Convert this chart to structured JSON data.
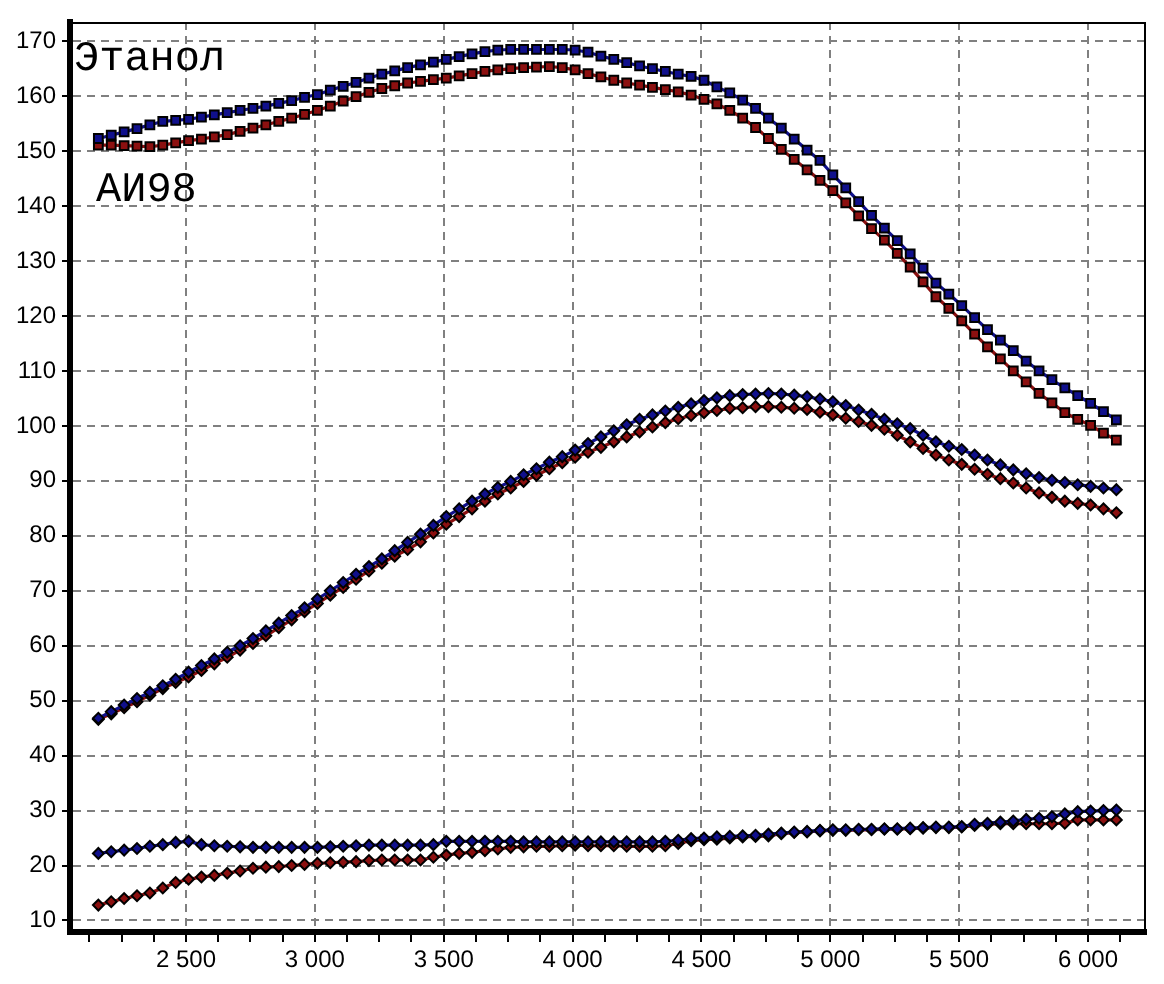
{
  "chart_data": {
    "type": "line",
    "line_style": "solid",
    "grid": true,
    "xlim": [
      2050,
      6225
    ],
    "ylim": [
      7.9,
      173.5
    ],
    "xticks": [
      {
        "value": 2125,
        "label": null
      },
      {
        "value": 2250,
        "label": null
      },
      {
        "value": 2375,
        "label": null
      },
      {
        "value": 2500,
        "label": "2 500"
      },
      {
        "value": 2625,
        "label": null
      },
      {
        "value": 2750,
        "label": null
      },
      {
        "value": 2875,
        "label": null
      },
      {
        "value": 3000,
        "label": "3 000"
      },
      {
        "value": 3125,
        "label": null
      },
      {
        "value": 3250,
        "label": null
      },
      {
        "value": 3375,
        "label": null
      },
      {
        "value": 3500,
        "label": "3 500"
      },
      {
        "value": 3625,
        "label": null
      },
      {
        "value": 3750,
        "label": null
      },
      {
        "value": 3875,
        "label": null
      },
      {
        "value": 4000,
        "label": "4 000"
      },
      {
        "value": 4125,
        "label": null
      },
      {
        "value": 4250,
        "label": null
      },
      {
        "value": 4375,
        "label": null
      },
      {
        "value": 4500,
        "label": "4 500"
      },
      {
        "value": 4625,
        "label": null
      },
      {
        "value": 4750,
        "label": null
      },
      {
        "value": 4875,
        "label": null
      },
      {
        "value": 5000,
        "label": "5 000"
      },
      {
        "value": 5125,
        "label": null
      },
      {
        "value": 5250,
        "label": null
      },
      {
        "value": 5375,
        "label": null
      },
      {
        "value": 5500,
        "label": "5 500"
      },
      {
        "value": 5625,
        "label": null
      },
      {
        "value": 5750,
        "label": null
      },
      {
        "value": 5875,
        "label": null
      },
      {
        "value": 6000,
        "label": "6 000"
      },
      {
        "value": 6125,
        "label": null
      }
    ],
    "yticks": [
      10,
      20,
      30,
      40,
      50,
      60,
      70,
      80,
      90,
      100,
      110,
      120,
      130,
      140,
      150,
      160,
      170
    ],
    "x": [
      2160,
      2210,
      2260,
      2310,
      2360,
      2410,
      2460,
      2510,
      2560,
      2610,
      2660,
      2710,
      2760,
      2810,
      2860,
      2910,
      2960,
      3010,
      3060,
      3110,
      3160,
      3210,
      3260,
      3310,
      3360,
      3410,
      3460,
      3510,
      3560,
      3610,
      3660,
      3710,
      3760,
      3810,
      3860,
      3910,
      3960,
      4010,
      4060,
      4110,
      4160,
      4210,
      4260,
      4310,
      4360,
      4410,
      4460,
      4510,
      4560,
      4610,
      4660,
      4710,
      4760,
      4810,
      4860,
      4910,
      4960,
      5010,
      5060,
      5110,
      5160,
      5210,
      5260,
      5310,
      5360,
      5410,
      5460,
      5510,
      5560,
      5610,
      5660,
      5710,
      5760,
      5810,
      5860,
      5910,
      5960,
      6010,
      6060,
      6110
    ],
    "series": [
      {
        "name": "Этанол",
        "color": "#10108c",
        "marker": "square",
        "values": [
          152.3,
          152.9,
          153.5,
          154.1,
          154.8,
          155.4,
          155.6,
          155.8,
          156.2,
          156.6,
          157.0,
          157.4,
          157.8,
          158.2,
          158.7,
          159.2,
          159.8,
          160.3,
          161.1,
          161.8,
          162.5,
          163.3,
          164.0,
          164.6,
          165.2,
          165.7,
          166.2,
          166.7,
          167.2,
          167.7,
          168.1,
          168.4,
          168.5,
          168.5,
          168.5,
          168.5,
          168.5,
          168.4,
          168.0,
          167.3,
          166.7,
          166.1,
          165.5,
          165.0,
          164.5,
          164.0,
          163.6,
          162.9,
          161.7,
          160.6,
          159.3,
          157.8,
          156.0,
          154.2,
          152.2,
          150.2,
          148.3,
          145.7,
          143.3,
          140.8,
          138.3,
          136.0,
          133.7,
          131.3,
          128.7,
          126.0,
          124.0,
          121.9,
          119.7,
          117.5,
          115.6,
          113.7,
          111.8,
          110.0,
          108.4,
          106.9,
          105.5,
          104.1,
          102.6,
          101.1
        ]
      },
      {
        "name": "АИ98",
        "color": "#8c1010",
        "marker": "square",
        "values": [
          151.1,
          151.1,
          151.0,
          150.9,
          150.8,
          151.1,
          151.5,
          151.9,
          152.2,
          152.6,
          153.0,
          153.6,
          154.2,
          154.8,
          155.4,
          156.0,
          156.7,
          157.4,
          158.2,
          159.1,
          159.9,
          160.7,
          161.4,
          161.9,
          162.4,
          162.7,
          163.0,
          163.3,
          163.7,
          164.1,
          164.5,
          164.8,
          165.0,
          165.2,
          165.3,
          165.4,
          165.2,
          164.8,
          164.1,
          163.5,
          162.9,
          162.4,
          162.0,
          161.6,
          161.2,
          160.8,
          160.2,
          159.4,
          158.6,
          157.4,
          156.0,
          154.3,
          152.3,
          150.3,
          148.5,
          146.6,
          144.7,
          142.8,
          140.6,
          138.2,
          135.9,
          133.8,
          131.4,
          128.9,
          126.2,
          123.5,
          121.4,
          119.1,
          116.7,
          114.4,
          112.2,
          110.0,
          108.0,
          105.9,
          104.2,
          102.4,
          101.2,
          100.1,
          98.7,
          97.4
        ]
      },
      {
        "color": "#10108c",
        "marker": "diamond",
        "values": [
          46.8,
          48.0,
          49.2,
          50.4,
          51.5,
          52.7,
          53.9,
          55.2,
          56.4,
          57.6,
          58.8,
          60.0,
          61.3,
          62.7,
          64.1,
          65.5,
          66.9,
          68.5,
          70.0,
          71.5,
          73.0,
          74.4,
          75.8,
          77.3,
          78.8,
          80.3,
          81.9,
          83.5,
          84.9,
          86.3,
          87.6,
          88.8,
          89.9,
          91.1,
          92.2,
          93.4,
          94.4,
          95.6,
          96.8,
          98.0,
          99.1,
          100.2,
          101.2,
          102.0,
          102.7,
          103.4,
          104.0,
          104.6,
          105.1,
          105.5,
          105.7,
          105.8,
          105.9,
          105.8,
          105.6,
          105.3,
          104.9,
          104.4,
          103.7,
          102.9,
          102.1,
          101.2,
          100.4,
          99.5,
          98.3,
          97.1,
          96.3,
          95.7,
          94.7,
          93.8,
          92.9,
          92.0,
          91.3,
          90.6,
          90.1,
          89.7,
          89.3,
          89.0,
          88.7,
          88.4
        ]
      },
      {
        "color": "#8c1010",
        "marker": "diamond",
        "values": [
          46.6,
          47.6,
          48.7,
          49.8,
          51.0,
          52.2,
          53.3,
          54.3,
          55.5,
          56.7,
          57.9,
          59.2,
          60.4,
          61.8,
          63.3,
          64.7,
          66.2,
          67.7,
          69.2,
          70.6,
          72.1,
          73.6,
          75.0,
          76.3,
          77.5,
          78.9,
          80.5,
          82.1,
          83.5,
          84.9,
          86.3,
          87.6,
          88.7,
          89.9,
          91.0,
          92.2,
          93.3,
          94.3,
          95.2,
          96.1,
          97.1,
          98.0,
          98.9,
          99.8,
          100.6,
          101.3,
          101.9,
          102.4,
          102.8,
          103.2,
          103.3,
          103.5,
          103.5,
          103.4,
          103.2,
          103.0,
          102.5,
          102.0,
          101.4,
          100.8,
          100.1,
          99.4,
          98.3,
          97.1,
          95.9,
          94.7,
          93.8,
          93.0,
          92.1,
          91.2,
          90.4,
          89.6,
          88.7,
          87.8,
          87.0,
          86.3,
          85.9,
          85.6,
          84.9,
          84.2
        ]
      },
      {
        "color": "#10108c",
        "marker": "diamond",
        "values": [
          22.2,
          22.5,
          22.8,
          23.1,
          23.5,
          23.8,
          24.2,
          24.4,
          23.8,
          23.6,
          23.5,
          23.4,
          23.3,
          23.3,
          23.3,
          23.3,
          23.3,
          23.3,
          23.4,
          23.5,
          23.6,
          23.7,
          23.7,
          23.7,
          23.7,
          23.7,
          23.8,
          24.4,
          24.4,
          24.4,
          24.4,
          24.4,
          24.4,
          24.3,
          24.3,
          24.3,
          24.3,
          24.3,
          24.3,
          24.3,
          24.3,
          24.3,
          24.3,
          24.3,
          24.4,
          24.6,
          24.9,
          25.0,
          25.2,
          25.3,
          25.4,
          25.5,
          25.7,
          25.9,
          26.1,
          26.2,
          26.4,
          26.5,
          26.5,
          26.6,
          26.6,
          26.7,
          26.7,
          26.8,
          26.9,
          27.0,
          27.0,
          27.1,
          27.5,
          27.7,
          27.9,
          28.1,
          28.4,
          28.6,
          28.9,
          29.4,
          29.8,
          29.9,
          30.0,
          30.1
        ]
      },
      {
        "color": "#8c1010",
        "marker": "diamond",
        "values": [
          12.8,
          13.4,
          14.0,
          14.5,
          15.0,
          15.9,
          16.9,
          17.5,
          17.9,
          18.2,
          18.6,
          19.0,
          19.5,
          19.7,
          19.8,
          20.0,
          20.2,
          20.4,
          20.5,
          20.6,
          20.7,
          20.9,
          21.0,
          21.0,
          21.0,
          21.0,
          21.5,
          21.9,
          22.2,
          22.4,
          22.7,
          23.0,
          23.3,
          23.4,
          23.5,
          23.5,
          23.6,
          23.7,
          23.6,
          23.6,
          23.6,
          23.5,
          23.5,
          23.5,
          23.6,
          24.0,
          24.5,
          24.7,
          24.8,
          25.0,
          25.2,
          25.3,
          25.4,
          25.8,
          26.0,
          26.1,
          26.3,
          26.4,
          26.4,
          26.5,
          26.5,
          26.6,
          26.6,
          26.7,
          26.8,
          26.9,
          26.9,
          27.0,
          27.3,
          27.5,
          27.6,
          27.6,
          27.6,
          27.6,
          27.6,
          27.7,
          28.3,
          28.3,
          28.3,
          28.3
        ]
      }
    ]
  }
}
